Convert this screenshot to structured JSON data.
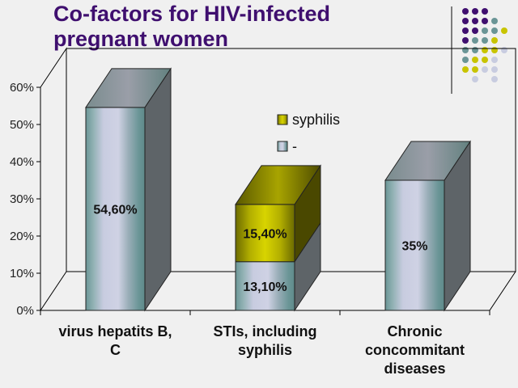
{
  "slide": {
    "title_line1": "Co-factors for HIV-infected",
    "title_line2": "pregnant women",
    "dot_colors": {
      "purple": "#3f0f6f",
      "teal": "#6a9596",
      "yellow": "#c8c400",
      "lavender": "#c8cce0"
    }
  },
  "chart_data": {
    "type": "bar",
    "stacked": true,
    "three_d": true,
    "title": "Co-factors for HIV-infected pregnant women",
    "categories": [
      [
        "virus hepatits B,",
        "C"
      ],
      [
        "STIs, including",
        "syphilis"
      ],
      [
        "Chronic",
        "concommitant",
        "diseases"
      ]
    ],
    "series": [
      {
        "name": "-",
        "values": [
          54.6,
          13.1,
          35
        ],
        "labels": [
          "54,60%",
          "13,10%",
          "35%"
        ],
        "color": "#c8cce0"
      },
      {
        "name": "syphilis",
        "values": [
          0,
          15.4,
          0
        ],
        "labels": [
          "",
          "15,40%",
          ""
        ],
        "color": "#c8c400"
      }
    ],
    "ylim": [
      0,
      60
    ],
    "yticks": [
      "0%",
      "10%",
      "20%",
      "30%",
      "40%",
      "50%",
      "60%"
    ],
    "legend": "center",
    "xlabel": "",
    "ylabel": ""
  }
}
